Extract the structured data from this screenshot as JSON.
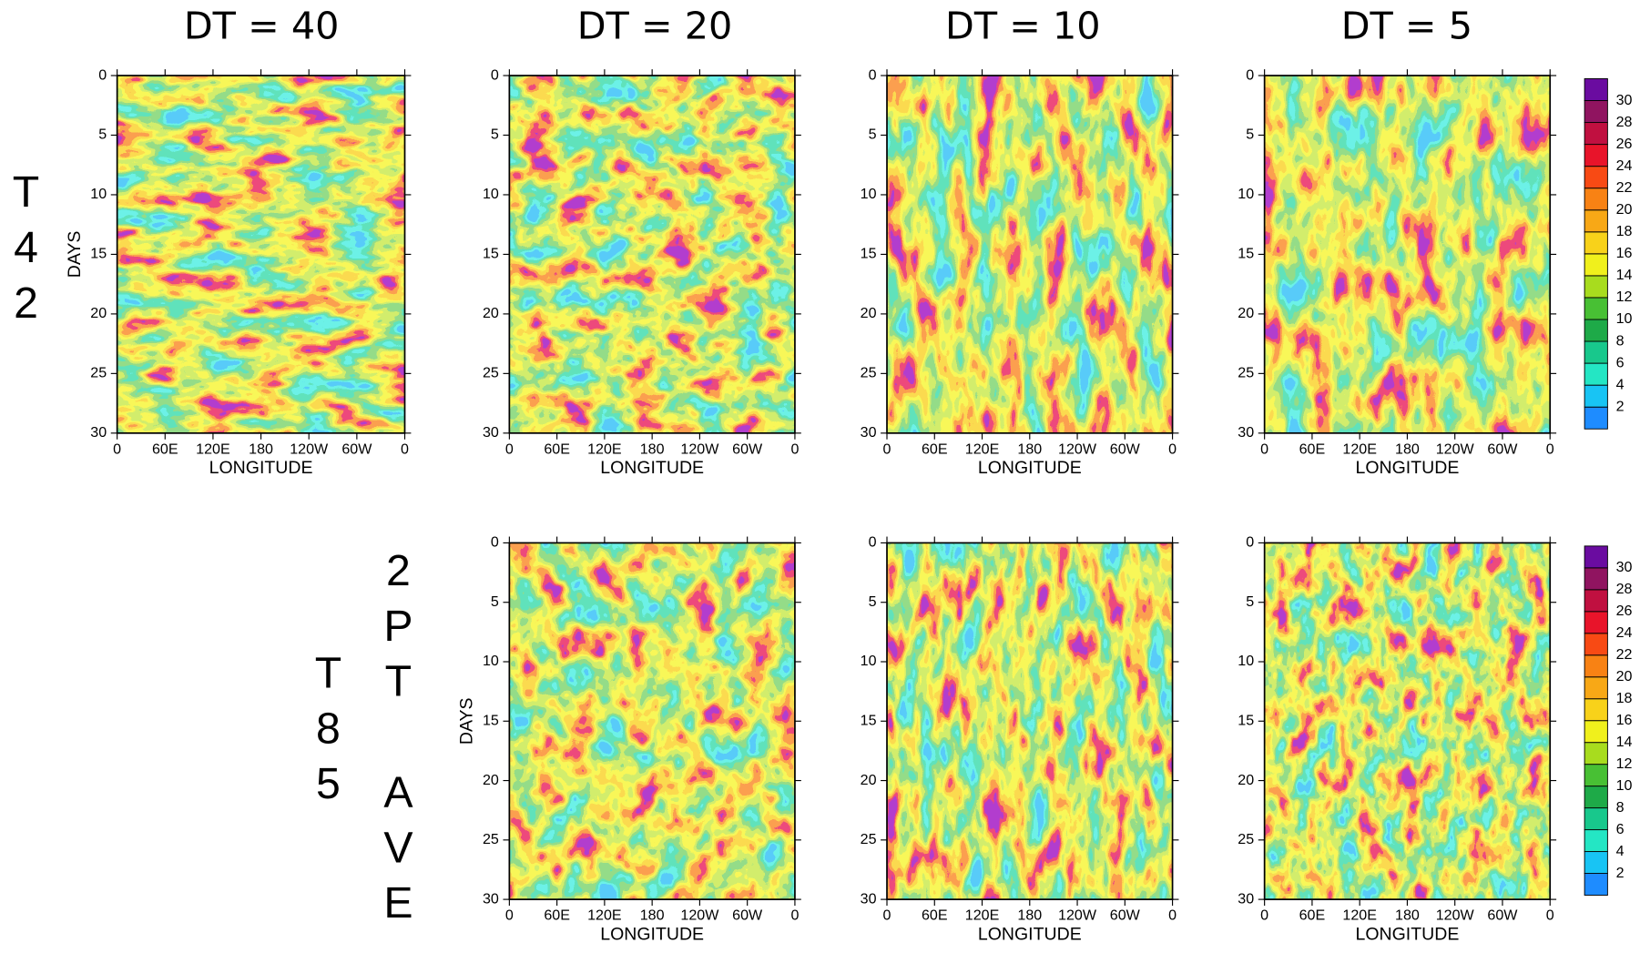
{
  "column_titles": [
    "DT = 40",
    "DT = 20",
    "DT = 10",
    "DT = 5"
  ],
  "row_labels": [
    "T42",
    "T85",
    "2PT AVE"
  ],
  "chart_data": [
    {
      "type": "contour",
      "xlabel": "LONGITUDE",
      "ylabel": "DAYS",
      "xlim": [
        0,
        360
      ],
      "ylim": [
        30,
        0
      ],
      "xticks": [
        0,
        {
          "value": 60,
          "label": "60E"
        },
        {
          "value": 120,
          "label": "120E"
        },
        180,
        {
          "value": 240,
          "label": "120W"
        },
        {
          "value": 300,
          "label": "60W"
        },
        {
          "value": 360,
          "label": "0"
        }
      ],
      "yticks": [
        0,
        5,
        10,
        15,
        20,
        25,
        30
      ]
    },
    {
      "type": "contour",
      "xlabel": "LONGITUDE",
      "xlim": [
        0,
        360
      ],
      "ylim": [
        30,
        0
      ],
      "xticks": [
        0,
        {
          "value": 60,
          "label": "60E"
        },
        {
          "value": 120,
          "label": "120E"
        },
        180,
        {
          "value": 240,
          "label": "120W"
        },
        {
          "value": 300,
          "label": "60W"
        },
        {
          "value": 360,
          "label": "0"
        }
      ],
      "yticks": [
        0,
        5,
        10,
        15,
        20,
        25,
        30
      ]
    },
    {
      "type": "contour",
      "xlabel": "LONGITUDE",
      "xlim": [
        0,
        360
      ],
      "ylim": [
        30,
        0
      ],
      "xticks": [
        0,
        {
          "value": 60,
          "label": "60E"
        },
        {
          "value": 120,
          "label": "120E"
        },
        180,
        {
          "value": 240,
          "label": "120W"
        },
        {
          "value": 300,
          "label": "60W"
        },
        {
          "value": 360,
          "label": "0"
        }
      ],
      "yticks": [
        0,
        5,
        10,
        15,
        20,
        25,
        30
      ]
    },
    {
      "type": "contour",
      "xlabel": "LONGITUDE",
      "xlim": [
        0,
        360
      ],
      "ylim": [
        30,
        0
      ],
      "xticks": [
        0,
        {
          "value": 60,
          "label": "60E"
        },
        {
          "value": 120,
          "label": "120E"
        },
        180,
        {
          "value": 240,
          "label": "120W"
        },
        {
          "value": 300,
          "label": "60W"
        },
        {
          "value": 360,
          "label": "0"
        }
      ],
      "yticks": [
        0,
        5,
        10,
        15,
        20,
        25,
        30
      ],
      "colorbar": {
        "levels": [
          2,
          4,
          6,
          8,
          10,
          12,
          14,
          16,
          18,
          20,
          22,
          24,
          26,
          28,
          30
        ],
        "colors": [
          "#1e8cff",
          "#18c4f4",
          "#24e6c4",
          "#18c88c",
          "#1eaa48",
          "#48c034",
          "#a8dc1e",
          "#f0f01c",
          "#f8d21a",
          "#f8a816",
          "#f88214",
          "#f84a14",
          "#e8142a",
          "#c01040",
          "#901460",
          "#6a0ca0"
        ]
      }
    },
    {
      "type": "contour",
      "xlabel": "LONGITUDE",
      "ylabel": "DAYS",
      "xlim": [
        0,
        360
      ],
      "ylim": [
        30,
        0
      ],
      "xticks": [
        0,
        {
          "value": 60,
          "label": "60E"
        },
        {
          "value": 120,
          "label": "120E"
        },
        180,
        {
          "value": 240,
          "label": "120W"
        },
        {
          "value": 300,
          "label": "60W"
        },
        {
          "value": 360,
          "label": "0"
        }
      ],
      "yticks": [
        0,
        5,
        10,
        15,
        20,
        25,
        30
      ]
    },
    {
      "type": "contour",
      "xlabel": "LONGITUDE",
      "xlim": [
        0,
        360
      ],
      "ylim": [
        30,
        0
      ],
      "xticks": [
        0,
        {
          "value": 60,
          "label": "60E"
        },
        {
          "value": 120,
          "label": "120E"
        },
        180,
        {
          "value": 240,
          "label": "120W"
        },
        {
          "value": 300,
          "label": "60W"
        },
        {
          "value": 360,
          "label": "0"
        }
      ],
      "yticks": [
        0,
        5,
        10,
        15,
        20,
        25,
        30
      ]
    },
    {
      "type": "contour",
      "xlabel": "LONGITUDE",
      "xlim": [
        0,
        360
      ],
      "ylim": [
        30,
        0
      ],
      "xticks": [
        0,
        {
          "value": 60,
          "label": "60E"
        },
        {
          "value": 120,
          "label": "120E"
        },
        180,
        {
          "value": 240,
          "label": "120W"
        },
        {
          "value": 300,
          "label": "60W"
        },
        {
          "value": 360,
          "label": "0"
        }
      ],
      "yticks": [
        0,
        5,
        10,
        15,
        20,
        25,
        30
      ],
      "colorbar": {
        "levels": [
          2,
          4,
          6,
          8,
          10,
          12,
          14,
          16,
          18,
          20,
          22,
          24,
          26,
          28,
          30
        ],
        "colors": [
          "#1e8cff",
          "#18c4f4",
          "#24e6c4",
          "#18c88c",
          "#1eaa48",
          "#48c034",
          "#a8dc1e",
          "#f0f01c",
          "#f8d21a",
          "#f8a816",
          "#f88214",
          "#f84a14",
          "#e8142a",
          "#c01040",
          "#901460",
          "#6a0ca0"
        ]
      }
    }
  ]
}
